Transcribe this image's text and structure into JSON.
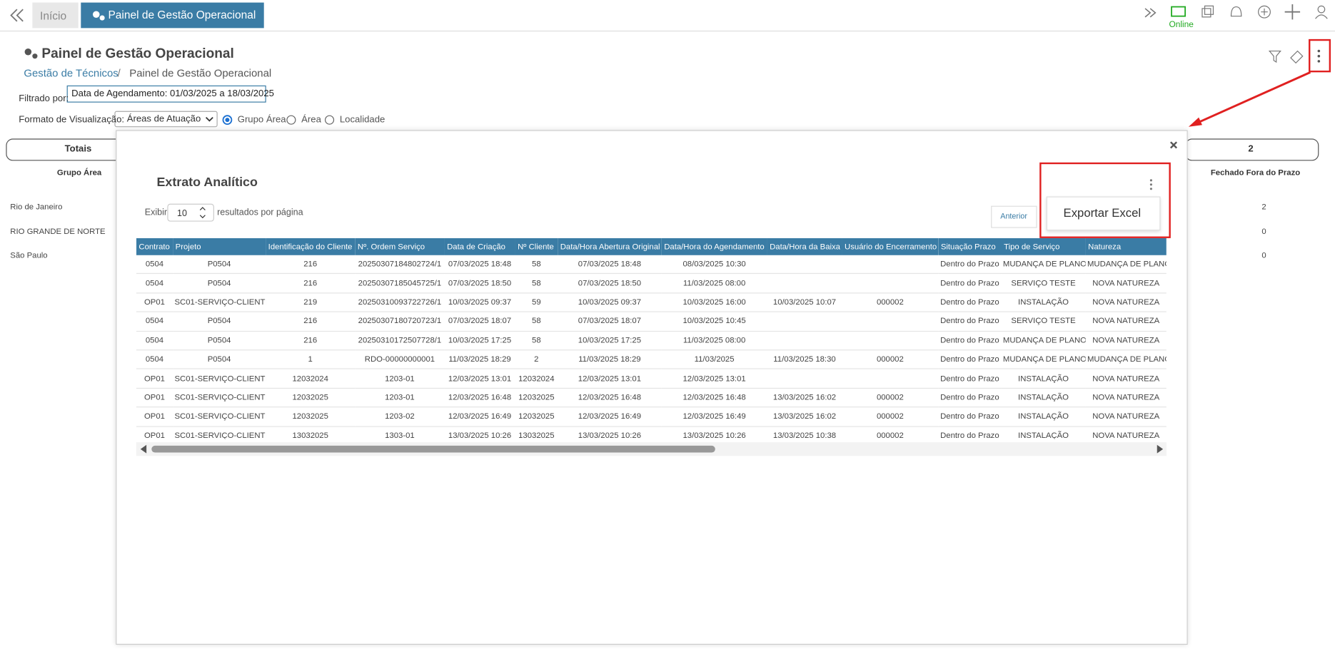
{
  "tabs": {
    "home": "Início",
    "active": "Painel de Gestão Operacional"
  },
  "status": "Online",
  "header": {
    "title": "Painel de Gestão Operacional",
    "breadcrumb": [
      "Gestão de Técnicos",
      "/",
      "Painel de Gestão Operacional"
    ]
  },
  "filter": {
    "label": "Filtrado por:",
    "value": "Data de Agendamento: 01/03/2025 a 18/03/2025"
  },
  "view": {
    "label": "Formato de Visualização:",
    "select": "Áreas de Atuação",
    "options": [
      "Grupo Área",
      "Área",
      "Localidade"
    ]
  },
  "background": {
    "totals": "Totais",
    "group_header": "Grupo Área",
    "right_total": "2",
    "right_header": "Fechado Fora do Prazo",
    "rows": [
      [
        "Rio de Janeiro",
        "2"
      ],
      [
        "RIO GRANDE DE NORTE",
        "0"
      ],
      [
        "São Paulo",
        "0"
      ]
    ]
  },
  "modal": {
    "title": "Extrato Analítico",
    "show": "Exibir",
    "page_size": "10",
    "per_page": "resultados por página",
    "previous": "Anterior",
    "menu_item": "Exportar Excel",
    "columns": [
      "Contrato",
      "Projeto",
      "Identificação do Cliente",
      "Nº. Ordem Serviço",
      "Data de Criação",
      "Nº Cliente",
      "Data/Hora Abertura Original",
      "Data/Hora do Agendamento",
      "Data/Hora da Baixa",
      "Usuário do Encerramento",
      "Situação Prazo",
      "Tipo de Serviço",
      "Natureza"
    ],
    "rows": [
      [
        "0504",
        "P0504",
        "216",
        "20250307184802724/1",
        "07/03/2025 18:48",
        "58",
        "07/03/2025 18:48",
        "08/03/2025 10:30",
        null,
        null,
        "Dentro do Prazo",
        "MUDANÇA DE PLANO",
        "MUDANÇA DE PLANO"
      ],
      [
        "0504",
        "P0504",
        "216",
        "20250307185045725/1",
        "07/03/2025 18:50",
        "58",
        "07/03/2025 18:50",
        "11/03/2025 08:00",
        null,
        null,
        "Dentro do Prazo",
        "SERVIÇO TESTE",
        "NOVA NATUREZA"
      ],
      [
        "OP01",
        "SC01-SERVIÇO-CLIENTE",
        "219",
        "20250310093722726/1",
        "10/03/2025 09:37",
        "59",
        "10/03/2025 09:37",
        "10/03/2025 16:00",
        "10/03/2025 10:07",
        "000002",
        "Dentro do Prazo",
        "INSTALAÇÃO",
        "NOVA NATUREZA"
      ],
      [
        "0504",
        "P0504",
        "216",
        "20250307180720723/1",
        "07/03/2025 18:07",
        "58",
        "07/03/2025 18:07",
        "10/03/2025 10:45",
        null,
        null,
        "Dentro do Prazo",
        "SERVIÇO TESTE",
        "NOVA NATUREZA"
      ],
      [
        "0504",
        "P0504",
        "216",
        "20250310172507728/1",
        "10/03/2025 17:25",
        "58",
        "10/03/2025 17:25",
        "11/03/2025 08:00",
        null,
        null,
        "Dentro do Prazo",
        "MUDANÇA DE PLANO",
        "NOVA NATUREZA"
      ],
      [
        "0504",
        "P0504",
        "1",
        "RDO-00000000001",
        "11/03/2025 18:29",
        "2",
        "11/03/2025 18:29",
        "11/03/2025",
        "11/03/2025 18:30",
        "000002",
        "Dentro do Prazo",
        "MUDANÇA DE PLANO",
        "MUDANÇA DE PLANO"
      ],
      [
        "OP01",
        "SC01-SERVIÇO-CLIENTE",
        "12032024",
        "1203-01",
        "12/03/2025 13:01",
        "12032024",
        "12/03/2025 13:01",
        "12/03/2025 13:01",
        null,
        null,
        "Dentro do Prazo",
        "INSTALAÇÃO",
        "NOVA NATUREZA"
      ],
      [
        "OP01",
        "SC01-SERVIÇO-CLIENTE",
        "12032025",
        "1203-01",
        "12/03/2025 16:48",
        "12032025",
        "12/03/2025 16:48",
        "12/03/2025 16:48",
        "13/03/2025 16:02",
        "000002",
        "Dentro do Prazo",
        "INSTALAÇÃO",
        "NOVA NATUREZA"
      ],
      [
        "OP01",
        "SC01-SERVIÇO-CLIENTE",
        "12032025",
        "1203-02",
        "12/03/2025 16:49",
        "12032025",
        "12/03/2025 16:49",
        "12/03/2025 16:49",
        "13/03/2025 16:02",
        "000002",
        "Dentro do Prazo",
        "INSTALAÇÃO",
        "NOVA NATUREZA"
      ],
      [
        "OP01",
        "SC01-SERVIÇO-CLIENTE",
        "13032025",
        "1303-01",
        "13/03/2025 10:26",
        "13032025",
        "13/03/2025 10:26",
        "13/03/2025 10:26",
        "13/03/2025 10:38",
        "000002",
        "Dentro do Prazo",
        "INSTALAÇÃO",
        "NOVA NATUREZA"
      ]
    ]
  }
}
